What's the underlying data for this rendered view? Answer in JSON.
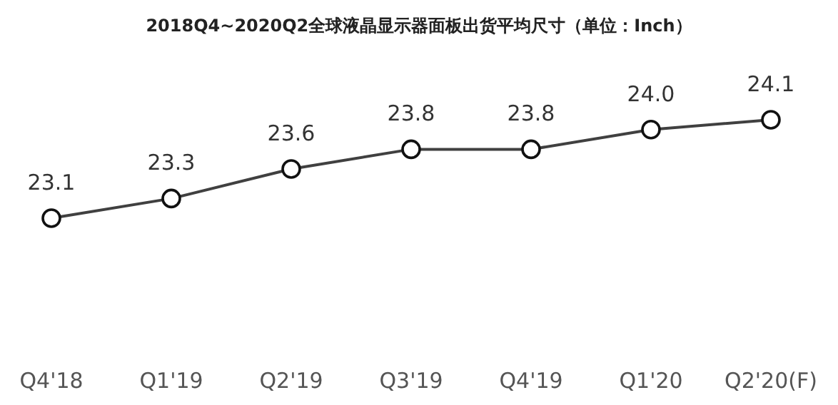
{
  "chart_data": {
    "type": "line",
    "title": "2018Q4~2020Q2全球液晶显示器面板出货平均尺寸（单位：Inch）",
    "categories": [
      "Q4'18",
      "Q1'19",
      "Q2'19",
      "Q3'19",
      "Q4'19",
      "Q1'20",
      "Q2'20(F)"
    ],
    "series": [
      {
        "color": "#404040",
        "values": [
          23.1,
          23.3,
          23.6,
          23.8,
          23.8,
          24.0,
          24.1
        ],
        "value_labels": [
          "23.1",
          "23.3",
          "23.6",
          "23.8",
          "23.8",
          "24.0",
          "24.1"
        ]
      }
    ],
    "marker": "circle",
    "line_style": "solid"
  }
}
